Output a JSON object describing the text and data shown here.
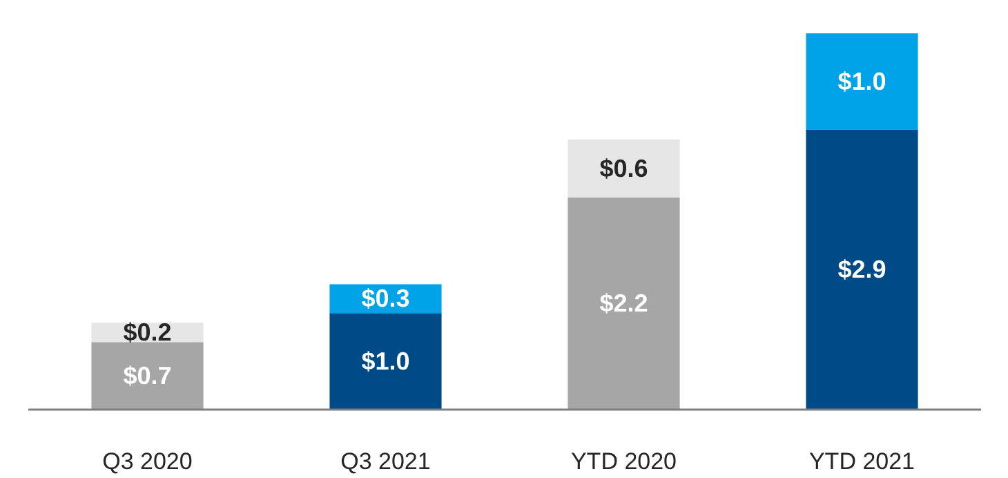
{
  "chart_data": {
    "type": "bar",
    "stacked": true,
    "categories": [
      "Q3 2020",
      "Q3 2021",
      "YTD 2020",
      "YTD 2021"
    ],
    "series": [
      {
        "colors": [
          "#a6a6a6",
          "#004b87",
          "#a6a6a6",
          "#004b87"
        ],
        "values": [
          0.7,
          1.0,
          2.2,
          2.9
        ],
        "value_labels": [
          "$0.7",
          "$1.0",
          "$2.2",
          "$2.9"
        ]
      },
      {
        "colors": [
          "#e6e6e6",
          "#00a3e8",
          "#e6e6e6",
          "#00a3e8"
        ],
        "values": [
          0.2,
          0.3,
          0.6,
          1.0
        ],
        "value_labels": [
          "$0.2",
          "$0.3",
          "$0.6",
          "$1.0"
        ]
      }
    ]
  }
}
